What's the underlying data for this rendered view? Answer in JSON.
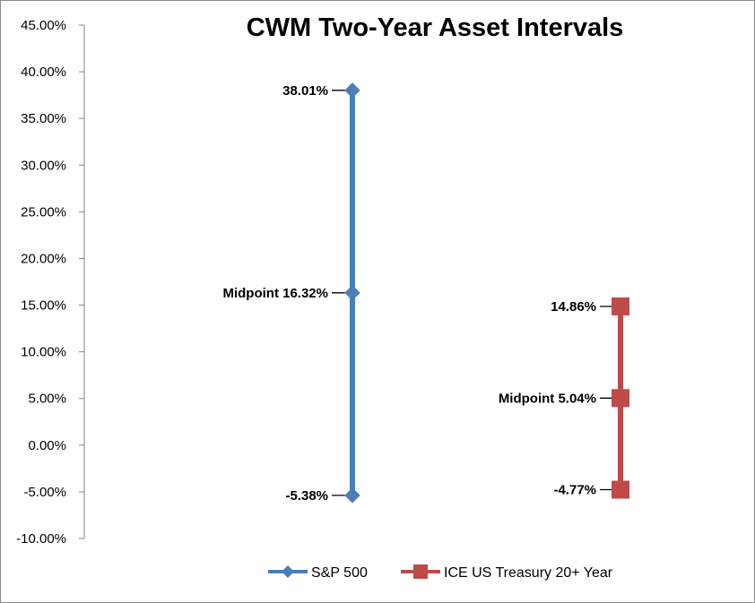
{
  "chart_data": {
    "type": "line",
    "title": "CWM Two-Year Asset Intervals",
    "xlabel": "",
    "ylabel": "",
    "ylim": [
      -10,
      45
    ],
    "y_ticks": [
      -10,
      -5,
      0,
      5,
      10,
      15,
      20,
      25,
      30,
      35,
      40,
      45
    ],
    "y_tick_format": "percent_2dp",
    "grid": false,
    "legend_position": "bottom",
    "series": [
      {
        "name": "S&P 500",
        "color": "#4a7ebb",
        "marker": "diamond",
        "values": [
          38.01,
          16.32,
          -5.38
        ],
        "labels": [
          "38.01%",
          "Midpoint 16.32%",
          "-5.38%"
        ]
      },
      {
        "name": "ICE US Treasury 20+ Year",
        "color": "#be4b48",
        "marker": "square",
        "values": [
          14.86,
          5.04,
          -4.77
        ],
        "labels": [
          "14.86%",
          "Midpoint 5.04%",
          "-4.77%"
        ]
      }
    ]
  }
}
